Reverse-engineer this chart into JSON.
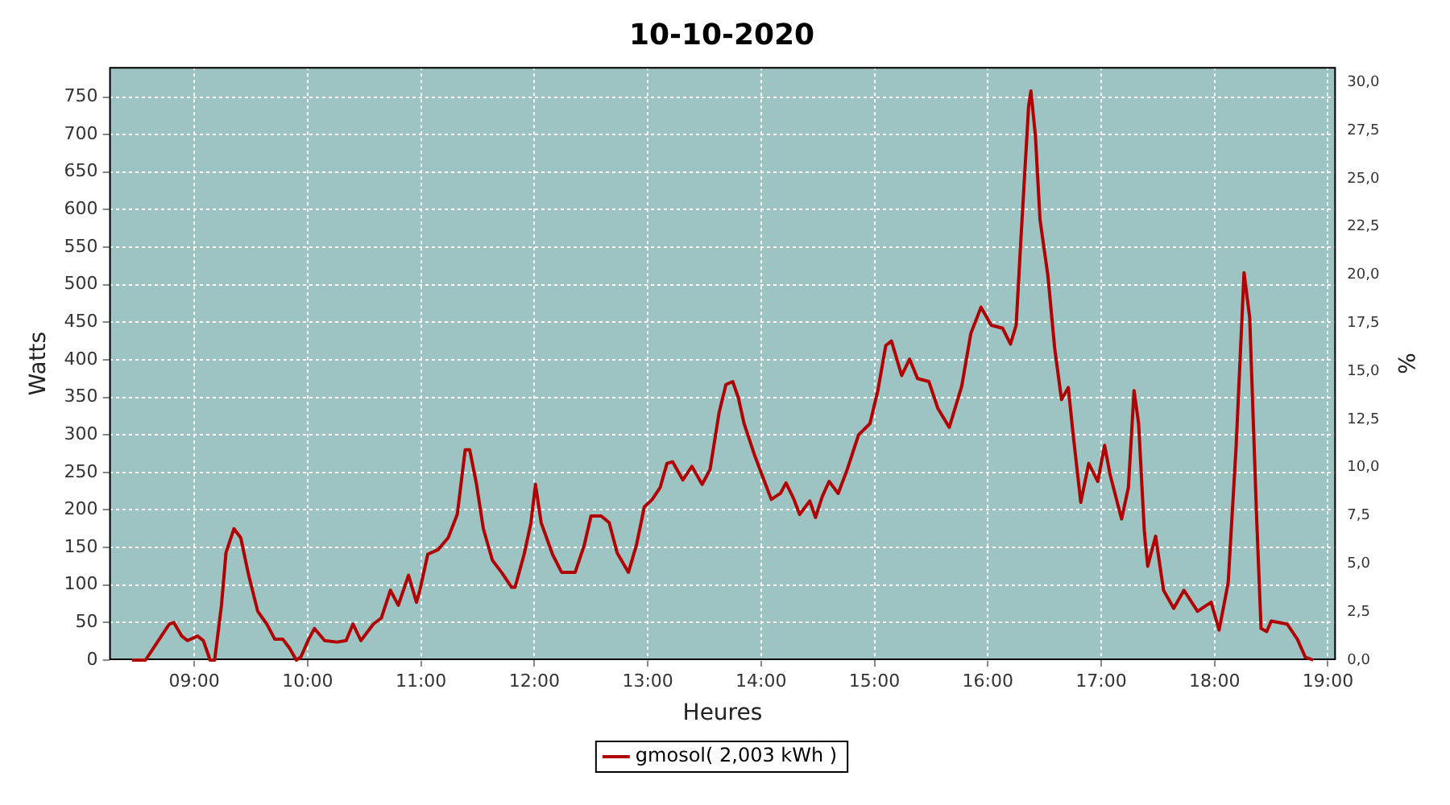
{
  "chart_data": {
    "type": "line",
    "title": "10-10-2020",
    "xlabel": "Heures",
    "ylabel": "Watts",
    "y2label": "%",
    "x": [
      8.45,
      8.57,
      8.71,
      8.78,
      8.82,
      8.89,
      8.94,
      9.03,
      9.08,
      9.14,
      9.18,
      9.24,
      9.28,
      9.35,
      9.41,
      9.48,
      9.56,
      9.64,
      9.71,
      9.78,
      9.84,
      9.9,
      9.94,
      10.01,
      10.06,
      10.15,
      10.26,
      10.34,
      10.4,
      10.47,
      10.58,
      10.65,
      10.73,
      10.8,
      10.89,
      10.96,
      10.99,
      11.06,
      11.15,
      11.24,
      11.32,
      11.39,
      11.43,
      11.49,
      11.55,
      11.63,
      11.71,
      11.8,
      11.83,
      11.91,
      11.97,
      12.01,
      12.06,
      12.16,
      12.24,
      12.36,
      12.44,
      12.5,
      12.59,
      12.66,
      12.73,
      12.83,
      12.9,
      12.97,
      13.04,
      13.11,
      13.17,
      13.22,
      13.31,
      13.39,
      13.48,
      13.55,
      13.63,
      13.69,
      13.75,
      13.8,
      13.85,
      13.94,
      14.04,
      14.09,
      14.17,
      14.22,
      14.29,
      14.34,
      14.43,
      14.48,
      14.54,
      14.6,
      14.68,
      14.76,
      14.86,
      14.96,
      15.03,
      15.1,
      15.15,
      15.24,
      15.31,
      15.38,
      15.48,
      15.56,
      15.66,
      15.77,
      15.85,
      15.94,
      16.03,
      16.13,
      16.2,
      16.25,
      16.29,
      16.36,
      16.38,
      16.42,
      16.46,
      16.53,
      16.59,
      16.65,
      16.71,
      16.75,
      16.82,
      16.89,
      16.97,
      17.03,
      17.08,
      17.18,
      17.24,
      17.29,
      17.33,
      17.38,
      17.41,
      17.48,
      17.55,
      17.64,
      17.73,
      17.85,
      17.97,
      18.04,
      18.12,
      18.19,
      18.26,
      18.31,
      18.37,
      18.41,
      18.46,
      18.5,
      18.64,
      18.73,
      18.8,
      18.87
    ],
    "series": [
      {
        "name": "gmosol( 2,003 kWh )",
        "color": "#b00000",
        "values": [
          0,
          0,
          32,
          48,
          50,
          32,
          26,
          32,
          26,
          0,
          0,
          73,
          143,
          175,
          163,
          113,
          65,
          48,
          28,
          28,
          16,
          0,
          4,
          28,
          42,
          26,
          24,
          26,
          48,
          26,
          48,
          56,
          93,
          73,
          113,
          77,
          93,
          141,
          147,
          163,
          194,
          280,
          280,
          234,
          175,
          133,
          117,
          97,
          97,
          141,
          183,
          234,
          183,
          141,
          117,
          117,
          153,
          192,
          192,
          183,
          143,
          117,
          153,
          204,
          214,
          230,
          262,
          264,
          240,
          258,
          234,
          254,
          330,
          367,
          371,
          349,
          315,
          274,
          234,
          214,
          222,
          236,
          214,
          194,
          212,
          190,
          218,
          238,
          222,
          254,
          300,
          315,
          359,
          419,
          425,
          379,
          401,
          375,
          371,
          335,
          310,
          365,
          435,
          470,
          446,
          442,
          421,
          446,
          556,
          738,
          758,
          698,
          587,
          512,
          415,
          347,
          363,
          304,
          210,
          262,
          238,
          286,
          246,
          188,
          230,
          359,
          315,
          173,
          125,
          165,
          93,
          69,
          93,
          65,
          77,
          40,
          103,
          284,
          516,
          456,
          194,
          42,
          38,
          52,
          48,
          28,
          4,
          0
        ]
      }
    ],
    "xlim": [
      8.25,
      19.07
    ],
    "xticks": [
      {
        "value": 9,
        "label": "09:00"
      },
      {
        "value": 10,
        "label": "10:00"
      },
      {
        "value": 11,
        "label": "11:00"
      },
      {
        "value": 12,
        "label": "12:00"
      },
      {
        "value": 13,
        "label": "13:00"
      },
      {
        "value": 14,
        "label": "14:00"
      },
      {
        "value": 15,
        "label": "15:00"
      },
      {
        "value": 16,
        "label": "16:00"
      },
      {
        "value": 17,
        "label": "17:00"
      },
      {
        "value": 18,
        "label": "18:00"
      },
      {
        "value": 19,
        "label": "19:00"
      }
    ],
    "ylim": [
      0,
      790
    ],
    "yticks": [
      0,
      50,
      100,
      150,
      200,
      250,
      300,
      350,
      400,
      450,
      500,
      550,
      600,
      650,
      700,
      750
    ],
    "y2lim": [
      0,
      30.8
    ],
    "y2ticks": [
      {
        "value": 0,
        "label": "0,0"
      },
      {
        "value": 2.5,
        "label": "2,5"
      },
      {
        "value": 5,
        "label": "5,0"
      },
      {
        "value": 7.5,
        "label": "7,5"
      },
      {
        "value": 10,
        "label": "10,0"
      },
      {
        "value": 12.5,
        "label": "12,5"
      },
      {
        "value": 15,
        "label": "15,0"
      },
      {
        "value": 17.5,
        "label": "17,5"
      },
      {
        "value": 20,
        "label": "20,0"
      },
      {
        "value": 22.5,
        "label": "22,5"
      },
      {
        "value": 25,
        "label": "25,0"
      },
      {
        "value": 27.5,
        "label": "27,5"
      },
      {
        "value": 30,
        "label": "30,0"
      }
    ],
    "grid": true,
    "legend": "bottom",
    "marker": "none",
    "line_style": "solid"
  }
}
